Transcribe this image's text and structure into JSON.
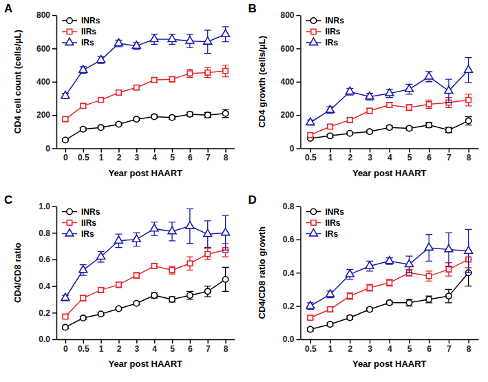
{
  "chart_data": [
    {
      "type": "line",
      "title": "A",
      "x_label": "Year post HAART",
      "y_label": "CD4 cell count (cells/μL)",
      "categories": [
        "0",
        "0.5",
        "1",
        "2",
        "3",
        "4",
        "5",
        "6",
        "7",
        "8"
      ],
      "ylim": [
        0,
        800
      ],
      "yticks": [
        0,
        200,
        400,
        600,
        800
      ],
      "legend": "upper left",
      "series": [
        {
          "name": "INRs",
          "color": "#000000",
          "marker": "circle",
          "values": [
            50,
            115,
            125,
            145,
            175,
            190,
            185,
            205,
            200,
            210
          ],
          "errors": [
            5,
            8,
            8,
            8,
            8,
            10,
            10,
            12,
            15,
            25
          ]
        },
        {
          "name": "IIRs",
          "color": "#e8252a",
          "marker": "square",
          "values": [
            175,
            255,
            290,
            335,
            365,
            410,
            415,
            450,
            455,
            465
          ],
          "errors": [
            10,
            12,
            12,
            12,
            12,
            15,
            15,
            25,
            30,
            35
          ]
        },
        {
          "name": "IRs",
          "color": "#1a1aa6",
          "marker": "triangle",
          "values": [
            315,
            470,
            530,
            630,
            615,
            655,
            655,
            645,
            640,
            685
          ],
          "errors": [
            15,
            20,
            20,
            20,
            20,
            30,
            30,
            40,
            70,
            45
          ]
        }
      ]
    },
    {
      "type": "line",
      "title": "B",
      "x_label": "Year post HAART",
      "y_label": "CD4 growth (cells/μL)",
      "categories": [
        "0.5",
        "1",
        "2",
        "3",
        "4",
        "5",
        "6",
        "7",
        "8"
      ],
      "ylim": [
        0,
        800
      ],
      "yticks": [
        0,
        200,
        400,
        600,
        800
      ],
      "legend": "upper left",
      "series": [
        {
          "name": "INRs",
          "color": "#000000",
          "marker": "circle",
          "values": [
            60,
            75,
            90,
            100,
            125,
            120,
            140,
            110,
            165
          ],
          "errors": [
            5,
            8,
            8,
            8,
            10,
            10,
            15,
            15,
            25
          ]
        },
        {
          "name": "IIRs",
          "color": "#e8252a",
          "marker": "square",
          "values": [
            80,
            130,
            170,
            225,
            260,
            245,
            265,
            275,
            290
          ],
          "errors": [
            10,
            12,
            12,
            15,
            15,
            18,
            25,
            30,
            35
          ]
        },
        {
          "name": "IRs",
          "color": "#1a1aa6",
          "marker": "triangle",
          "values": [
            155,
            230,
            340,
            310,
            330,
            355,
            430,
            345,
            470
          ],
          "errors": [
            15,
            20,
            20,
            20,
            25,
            30,
            30,
            70,
            75
          ]
        }
      ]
    },
    {
      "type": "line",
      "title": "C",
      "x_label": "Year post HAART",
      "y_label": "CD4/CD8 ratio",
      "categories": [
        "0",
        "0.5",
        "1",
        "2",
        "3",
        "4",
        "5",
        "6",
        "7",
        "8"
      ],
      "ylim": [
        0,
        1
      ],
      "yticks": [
        {
          "value": 0,
          "label": "0.0"
        },
        0.2,
        0.4,
        0.6,
        0.8,
        {
          "value": 1,
          "label": "1.0"
        }
      ],
      "legend": "upper left",
      "series": [
        {
          "name": "INRs",
          "color": "#000000",
          "marker": "circle",
          "values": [
            0.09,
            0.16,
            0.19,
            0.23,
            0.27,
            0.33,
            0.3,
            0.33,
            0.36,
            0.45
          ],
          "errors": [
            0.01,
            0.01,
            0.01,
            0.01,
            0.01,
            0.02,
            0.02,
            0.03,
            0.04,
            0.09
          ]
        },
        {
          "name": "IIRs",
          "color": "#e8252a",
          "marker": "square",
          "values": [
            0.17,
            0.31,
            0.37,
            0.41,
            0.48,
            0.55,
            0.52,
            0.57,
            0.64,
            0.67
          ],
          "errors": [
            0.01,
            0.02,
            0.02,
            0.02,
            0.02,
            0.02,
            0.03,
            0.05,
            0.04,
            0.05
          ]
        },
        {
          "name": "IRs",
          "color": "#1a1aa6",
          "marker": "triangle",
          "values": [
            0.31,
            0.52,
            0.62,
            0.74,
            0.75,
            0.83,
            0.81,
            0.85,
            0.79,
            0.8
          ],
          "errors": [
            0.02,
            0.04,
            0.04,
            0.05,
            0.05,
            0.05,
            0.07,
            0.13,
            0.1,
            0.13
          ]
        }
      ]
    },
    {
      "type": "line",
      "title": "D",
      "x_label": "Year post HAART",
      "y_label": "CD4/CD8 ratio growth",
      "categories": [
        "0.5",
        "1",
        "2",
        "3",
        "4",
        "5",
        "6",
        "7",
        "8"
      ],
      "ylim": [
        0,
        0.8
      ],
      "yticks": [
        {
          "value": 0,
          "label": "0.0"
        },
        0.2,
        0.4,
        0.6,
        0.8
      ],
      "legend": "upper left",
      "series": [
        {
          "name": "INRs",
          "color": "#000000",
          "marker": "circle",
          "values": [
            0.06,
            0.09,
            0.13,
            0.18,
            0.22,
            0.22,
            0.24,
            0.26,
            0.4
          ],
          "errors": [
            0.01,
            0.01,
            0.01,
            0.01,
            0.01,
            0.02,
            0.02,
            0.04,
            0.08
          ]
        },
        {
          "name": "IIRs",
          "color": "#e8252a",
          "marker": "square",
          "values": [
            0.13,
            0.18,
            0.26,
            0.31,
            0.34,
            0.4,
            0.38,
            0.42,
            0.48
          ],
          "errors": [
            0.01,
            0.01,
            0.02,
            0.02,
            0.02,
            0.02,
            0.03,
            0.04,
            0.05
          ]
        },
        {
          "name": "IRs",
          "color": "#1a1aa6",
          "marker": "triangle",
          "values": [
            0.2,
            0.27,
            0.39,
            0.44,
            0.47,
            0.45,
            0.55,
            0.54,
            0.53
          ],
          "errors": [
            0.02,
            0.02,
            0.03,
            0.03,
            0.02,
            0.05,
            0.08,
            0.1,
            0.13
          ]
        }
      ]
    }
  ]
}
